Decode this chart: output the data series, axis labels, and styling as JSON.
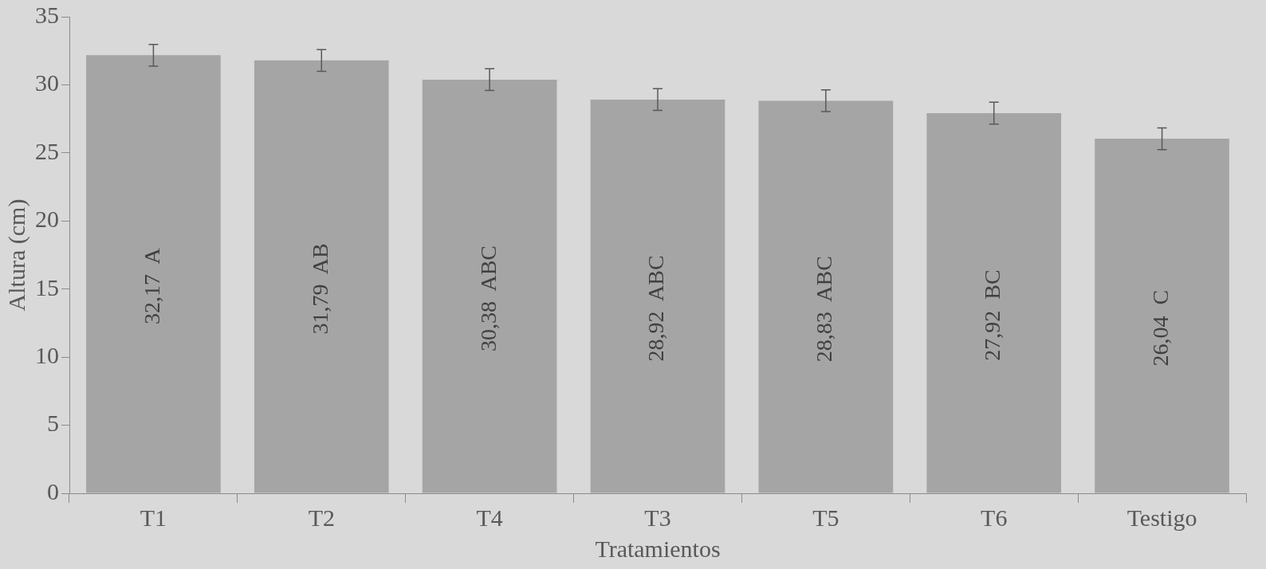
{
  "chart_data": {
    "type": "bar",
    "xlabel": "Tratamientos",
    "ylabel": "Altura (cm)",
    "categories": [
      "T1",
      "T2",
      "T4",
      "T3",
      "T5",
      "T6",
      "Testigo"
    ],
    "values": [
      32.17,
      31.79,
      30.38,
      28.92,
      28.83,
      27.92,
      26.04
    ],
    "errors": [
      0.8,
      0.8,
      0.8,
      0.8,
      0.8,
      0.8,
      0.8
    ],
    "value_labels": [
      "32,17  A",
      "31,79  AB",
      "30,38  ABC",
      "28,92  ABC",
      "28,83  ABC",
      "27,92  BC",
      "26,04  C"
    ],
    "color": "#a5a5a5",
    "ylim": [
      0,
      35
    ],
    "yticks": [
      0,
      5,
      10,
      15,
      20,
      25,
      30,
      35
    ],
    "grid": false,
    "legend": false
  }
}
